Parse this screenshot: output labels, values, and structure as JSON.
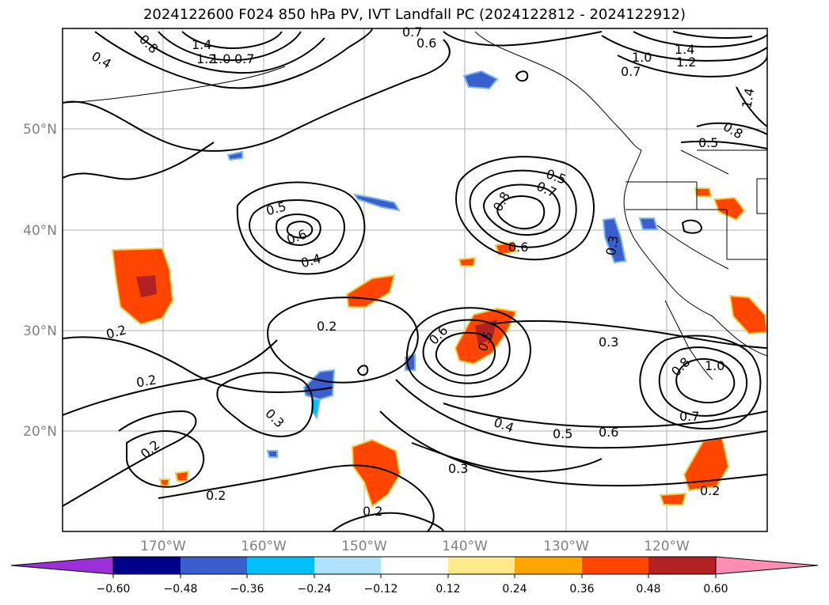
{
  "title": "2024122600 F024 850 hPa PV, IVT Landfall PC (2024122812 - 2024122912)",
  "lat_labels": [
    "50°N",
    "40°N",
    "30°N",
    "20°N"
  ],
  "lon_labels": [
    "170°W",
    "160°W",
    "150°W",
    "140°W",
    "130°W",
    "120°W"
  ],
  "contour_labels": [
    "1.4",
    "0.8",
    "1.2",
    "1.0",
    "0.7",
    "0.4",
    "0.6",
    "0.7",
    "1.4",
    "1.2",
    "1.0",
    "0.7",
    "1.4",
    "0.8",
    "0.5",
    "0.5",
    "0.8",
    "0.7",
    "0.5",
    "0.6",
    "0.6",
    "0.3",
    "0.4",
    "0.2",
    "0.2",
    "0.6",
    "0.5",
    "0.3",
    "0.2",
    "0.3",
    "0.8",
    "1.0",
    "0.7",
    "0.4",
    "0.5",
    "0.6",
    "0.2",
    "0.3",
    "0.2",
    "0.2",
    "0.2"
  ],
  "colorbar": {
    "ticks": [
      "−0.60",
      "−0.48",
      "−0.36",
      "−0.24",
      "−0.12",
      "0.12",
      "0.24",
      "0.36",
      "0.48",
      "0.60"
    ],
    "colors": [
      "#9b30d9",
      "#00008b",
      "#3a5fcd",
      "#00bfff",
      "#b0e2ff",
      "#ffffff",
      "#ffe98a",
      "#ffa500",
      "#ff4500",
      "#b22222",
      "#ff8db3"
    ]
  }
}
